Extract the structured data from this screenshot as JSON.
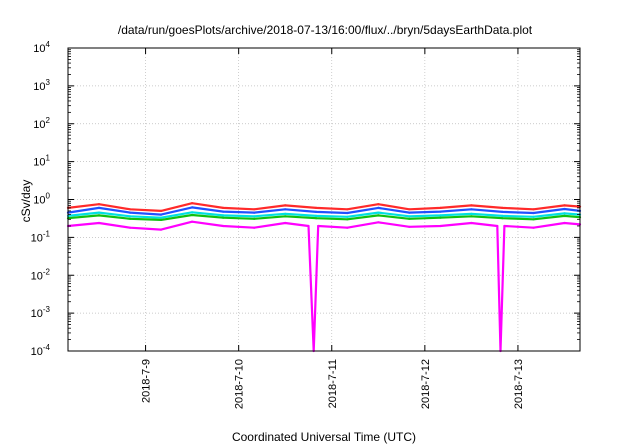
{
  "chart_data": {
    "type": "line",
    "title": "/data/run/goesPlots/archive/2018-07-13/16:00/flux/../bryn/5daysEarthData.plot",
    "xlabel": "Coordinated Universal Time (UTC)",
    "ylabel": "cSv/day",
    "yscale": "log",
    "ylim": [
      0.0001,
      10000
    ],
    "xlim": [
      "2018-07-08T04:00",
      "2018-07-13T16:00"
    ],
    "grid": true,
    "legend": "none",
    "y_ticks": [
      {
        "value": 0.0001,
        "base": "10",
        "exp": "-4"
      },
      {
        "value": 0.001,
        "base": "10",
        "exp": "-3"
      },
      {
        "value": 0.01,
        "base": "10",
        "exp": "-2"
      },
      {
        "value": 0.1,
        "base": "10",
        "exp": "-1"
      },
      {
        "value": 1,
        "base": "10",
        "exp": "0"
      },
      {
        "value": 10,
        "base": "10",
        "exp": "1"
      },
      {
        "value": 100,
        "base": "10",
        "exp": "2"
      },
      {
        "value": 1000,
        "base": "10",
        "exp": "3"
      },
      {
        "value": 10000,
        "base": "10",
        "exp": "4"
      }
    ],
    "x_ticks": [
      {
        "value": "2018-07-09T00:00",
        "label": "2018-7-9"
      },
      {
        "value": "2018-07-10T00:00",
        "label": "2018-7-10"
      },
      {
        "value": "2018-07-11T00:00",
        "label": "2018-7-11"
      },
      {
        "value": "2018-07-12T00:00",
        "label": "2018-7-12"
      },
      {
        "value": "2018-07-13T00:00",
        "label": "2018-7-13"
      }
    ],
    "series": [
      {
        "color": "#ff2a2a",
        "x": [
          "2018-07-08T04:00",
          "2018-07-08T12:00",
          "2018-07-08T20:00",
          "2018-07-09T04:00",
          "2018-07-09T12:00",
          "2018-07-09T20:00",
          "2018-07-10T04:00",
          "2018-07-10T12:00",
          "2018-07-10T20:00",
          "2018-07-11T04:00",
          "2018-07-11T12:00",
          "2018-07-11T20:00",
          "2018-07-12T04:00",
          "2018-07-12T12:00",
          "2018-07-12T20:00",
          "2018-07-13T04:00",
          "2018-07-13T12:00",
          "2018-07-13T16:00"
        ],
        "y": [
          0.6,
          0.75,
          0.55,
          0.5,
          0.8,
          0.6,
          0.55,
          0.7,
          0.6,
          0.55,
          0.75,
          0.55,
          0.6,
          0.7,
          0.6,
          0.55,
          0.7,
          0.65
        ]
      },
      {
        "color": "#2050ff",
        "x": [
          "2018-07-08T04:00",
          "2018-07-08T12:00",
          "2018-07-08T20:00",
          "2018-07-09T04:00",
          "2018-07-09T12:00",
          "2018-07-09T20:00",
          "2018-07-10T04:00",
          "2018-07-10T12:00",
          "2018-07-10T20:00",
          "2018-07-11T04:00",
          "2018-07-11T12:00",
          "2018-07-11T20:00",
          "2018-07-12T04:00",
          "2018-07-12T12:00",
          "2018-07-12T20:00",
          "2018-07-13T04:00",
          "2018-07-13T12:00",
          "2018-07-13T16:00"
        ],
        "y": [
          0.45,
          0.6,
          0.45,
          0.4,
          0.62,
          0.48,
          0.45,
          0.55,
          0.47,
          0.44,
          0.6,
          0.45,
          0.48,
          0.55,
          0.47,
          0.44,
          0.56,
          0.5
        ]
      },
      {
        "color": "#00e0e0",
        "x": [
          "2018-07-08T04:00",
          "2018-07-08T12:00",
          "2018-07-08T20:00",
          "2018-07-09T04:00",
          "2018-07-09T12:00",
          "2018-07-09T20:00",
          "2018-07-10T04:00",
          "2018-07-10T12:00",
          "2018-07-10T20:00",
          "2018-07-11T04:00",
          "2018-07-11T12:00",
          "2018-07-11T20:00",
          "2018-07-12T04:00",
          "2018-07-12T12:00",
          "2018-07-12T20:00",
          "2018-07-13T04:00",
          "2018-07-13T12:00",
          "2018-07-13T16:00"
        ],
        "y": [
          0.37,
          0.45,
          0.36,
          0.33,
          0.46,
          0.38,
          0.36,
          0.42,
          0.37,
          0.35,
          0.45,
          0.36,
          0.38,
          0.42,
          0.37,
          0.35,
          0.43,
          0.4
        ]
      },
      {
        "color": "#10c010",
        "x": [
          "2018-07-08T04:00",
          "2018-07-08T12:00",
          "2018-07-08T20:00",
          "2018-07-09T04:00",
          "2018-07-09T12:00",
          "2018-07-09T20:00",
          "2018-07-10T04:00",
          "2018-07-10T12:00",
          "2018-07-10T20:00",
          "2018-07-11T04:00",
          "2018-07-11T12:00",
          "2018-07-11T20:00",
          "2018-07-12T04:00",
          "2018-07-12T12:00",
          "2018-07-12T20:00",
          "2018-07-13T04:00",
          "2018-07-13T12:00",
          "2018-07-13T16:00"
        ],
        "y": [
          0.32,
          0.38,
          0.31,
          0.29,
          0.39,
          0.33,
          0.31,
          0.36,
          0.32,
          0.3,
          0.38,
          0.31,
          0.33,
          0.36,
          0.32,
          0.3,
          0.37,
          0.34
        ]
      },
      {
        "color": "#ff00ff",
        "x": [
          "2018-07-08T04:00",
          "2018-07-08T12:00",
          "2018-07-08T20:00",
          "2018-07-09T04:00",
          "2018-07-09T12:00",
          "2018-07-09T20:00",
          "2018-07-10T04:00",
          "2018-07-10T12:00",
          "2018-07-10T18:00",
          "2018-07-10T19:20",
          "2018-07-10T20:30",
          "2018-07-11T04:00",
          "2018-07-11T12:00",
          "2018-07-11T20:00",
          "2018-07-12T04:00",
          "2018-07-12T12:00",
          "2018-07-12T18:40",
          "2018-07-12T19:30",
          "2018-07-12T20:30",
          "2018-07-13T04:00",
          "2018-07-13T12:00",
          "2018-07-13T16:00"
        ],
        "y": [
          0.2,
          0.24,
          0.18,
          0.16,
          0.26,
          0.2,
          0.18,
          0.24,
          0.2,
          0.0001,
          0.2,
          0.18,
          0.25,
          0.19,
          0.2,
          0.24,
          0.2,
          0.0001,
          0.2,
          0.18,
          0.24,
          0.22
        ]
      }
    ]
  }
}
